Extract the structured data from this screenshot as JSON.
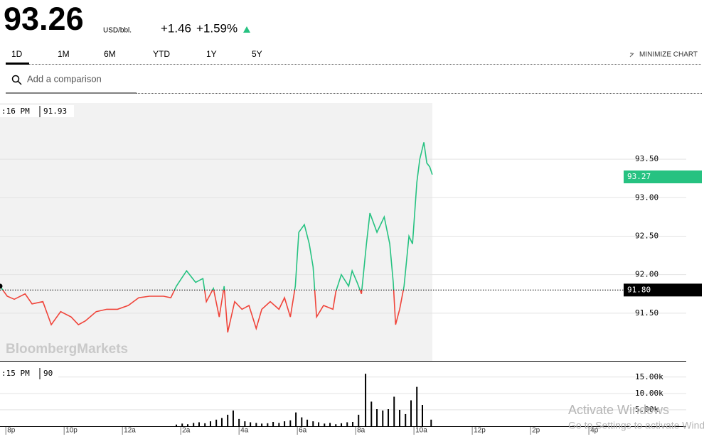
{
  "header": {
    "price": "93.26",
    "unit": "USD/bbl.",
    "change": "+1.46",
    "change_pct": "+1.59%"
  },
  "tabs": [
    "1D",
    "1M",
    "6M",
    "YTD",
    "1Y",
    "5Y"
  ],
  "minimize": "MINIMIZE CHART",
  "search_placeholder": "Add a comparison",
  "watermark": "BloombergMarkets",
  "windows": {
    "title": "Activate Windows",
    "subtitle": "Go to Settings to activate Windows."
  },
  "chart_data": [
    {
      "type": "line",
      "x": [
        19.8,
        20.05,
        20.29,
        20.66,
        20.9,
        21.27,
        21.56,
        21.88,
        22.24,
        22.49,
        22.73,
        23.1,
        23.46,
        23.83,
        24.2,
        24.56,
        24.93,
        25.41,
        25.66,
        25.85,
        26.2,
        26.51,
        26.76,
        26.88,
        27.12,
        27.32,
        27.49,
        27.61,
        27.85,
        28.1,
        28.34,
        28.59,
        28.78,
        29.07,
        29.37,
        29.56,
        29.76,
        29.93,
        30.05,
        30.24,
        30.41,
        30.54,
        30.66,
        30.9,
        31.22,
        31.32,
        31.51,
        31.76,
        31.88,
        32.05,
        32.2,
        32.37,
        32.49,
        32.73,
        32.98,
        33.17,
        33.29,
        33.37,
        33.51,
        33.66,
        33.83,
        33.95,
        34.1,
        34.2,
        34.34,
        34.44,
        34.54,
        34.63
      ],
      "values": [
        91.85,
        91.72,
        91.68,
        91.75,
        91.62,
        91.65,
        91.35,
        91.52,
        91.45,
        91.35,
        91.4,
        91.52,
        91.55,
        91.55,
        91.6,
        91.7,
        91.72,
        91.72,
        91.7,
        91.85,
        92.05,
        91.9,
        91.95,
        91.65,
        91.82,
        91.45,
        91.85,
        91.25,
        91.65,
        91.55,
        91.6,
        91.3,
        91.55,
        91.65,
        91.55,
        91.7,
        91.45,
        91.85,
        92.55,
        92.65,
        92.4,
        92.1,
        91.45,
        91.6,
        91.55,
        91.78,
        92.0,
        91.85,
        92.05,
        91.9,
        91.75,
        92.4,
        92.8,
        92.55,
        92.75,
        92.4,
        91.9,
        91.35,
        91.55,
        91.85,
        92.5,
        92.4,
        93.2,
        93.5,
        93.72,
        93.45,
        93.4,
        93.3
      ],
      "up_color": "#26c281",
      "down_color": "#f0443a",
      "previous_close": {
        "value": 91.8,
        "label": "91.80"
      },
      "last": 93.27,
      "crosshair": {
        "label": ":16 PM",
        "value": 91.93
      },
      "xlim": [
        19.8,
        43.34
      ],
      "ylim": [
        90.88,
        94.23
      ],
      "yticks": [
        {
          "value": 91.5,
          "label": "91.50"
        },
        {
          "value": 92,
          "label": "92.00"
        },
        {
          "value": 92.5,
          "label": "92.50"
        },
        {
          "value": 93,
          "label": "93.00"
        },
        {
          "value": 93.5,
          "label": "93.50"
        }
      ],
      "grid": true
    },
    {
      "type": "bar",
      "x": [
        25.85,
        26.05,
        26.24,
        26.44,
        26.63,
        26.83,
        27.02,
        27.22,
        27.41,
        27.61,
        27.8,
        28.0,
        28.2,
        28.39,
        28.59,
        28.78,
        28.98,
        29.17,
        29.37,
        29.56,
        29.76,
        29.95,
        30.15,
        30.34,
        30.54,
        30.73,
        30.93,
        31.12,
        31.32,
        31.51,
        31.71,
        31.9,
        32.1,
        32.34,
        32.54,
        32.73,
        32.93,
        33.12,
        33.32,
        33.51,
        33.71,
        33.9,
        34.1,
        34.29,
        34.59
      ],
      "values": [
        500,
        800,
        600,
        1000,
        1200,
        900,
        1500,
        2000,
        2500,
        3500,
        4800,
        2200,
        1500,
        1200,
        1000,
        800,
        900,
        1300,
        1000,
        1500,
        1800,
        4200,
        2700,
        2000,
        1500,
        1200,
        800,
        1000,
        600,
        900,
        1200,
        1300,
        3500,
        16000,
        7500,
        5200,
        4800,
        5200,
        9000,
        5000,
        3700,
        7900,
        12000,
        6500,
        2000
      ],
      "color": "#000000",
      "crosshair": {
        "label": ":15 PM",
        "value": 90
      },
      "xlim": [
        19.8,
        43.34
      ],
      "ylim": [
        0,
        19500
      ],
      "yticks": [
        {
          "value": 5000,
          "label": "5.00k"
        },
        {
          "value": 10000,
          "label": "10.00k"
        },
        {
          "value": 15000,
          "label": "15.00k"
        }
      ],
      "xticks": [
        {
          "value": 20,
          "label": "8p"
        },
        {
          "value": 22,
          "label": "10p"
        },
        {
          "value": 24,
          "label": "12a"
        },
        {
          "value": 26,
          "label": "2a"
        },
        {
          "value": 28,
          "label": "4a"
        },
        {
          "value": 30,
          "label": "6a"
        },
        {
          "value": 32,
          "label": "8a"
        },
        {
          "value": 34,
          "label": "10a"
        },
        {
          "value": 36,
          "label": "12p"
        },
        {
          "value": 38,
          "label": "2p"
        },
        {
          "value": 40,
          "label": "4p"
        }
      ],
      "grid": true
    }
  ]
}
